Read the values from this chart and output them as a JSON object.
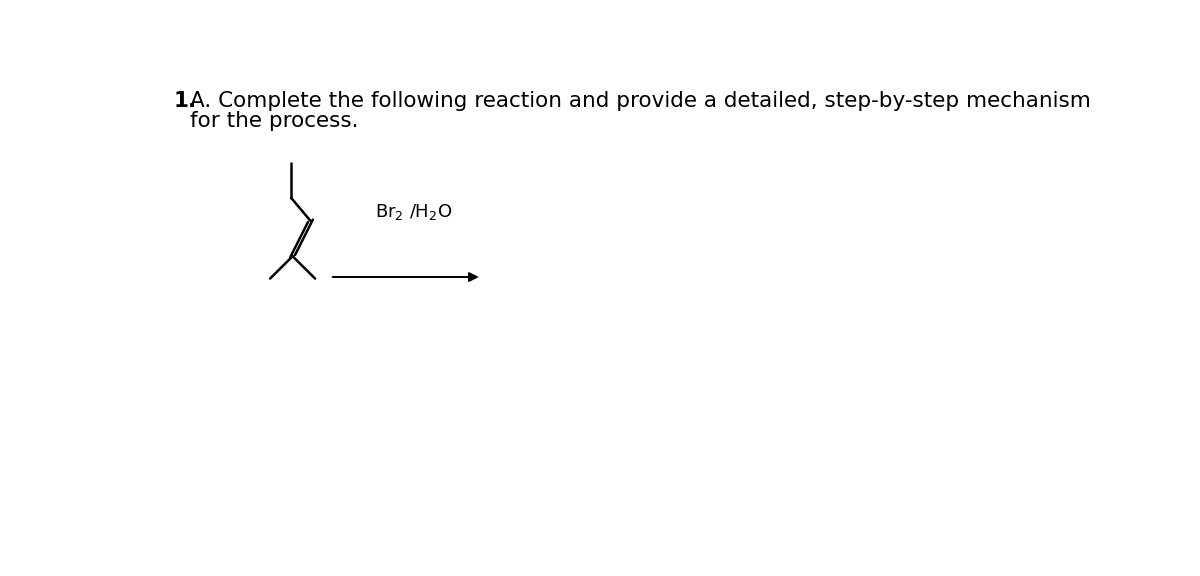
{
  "title_bold_part": "1.",
  "title_rest_line1": "A. Complete the following reaction and provide a detailed, step-by-step mechanism",
  "title_line2": "for the process.",
  "reagent_line1": "Br",
  "reagent_sub2": "2",
  "reagent_line2": " /H",
  "reagent_sub3": "2",
  "reagent_line3": "O",
  "background_color": "#ffffff",
  "text_color": "#000000",
  "molecule_color": "#000000",
  "arrow_color": "#000000",
  "title_fontsize": 15.5,
  "reagent_fontsize": 13,
  "molecule_linewidth": 1.8,
  "arrow_linewidth": 1.4
}
